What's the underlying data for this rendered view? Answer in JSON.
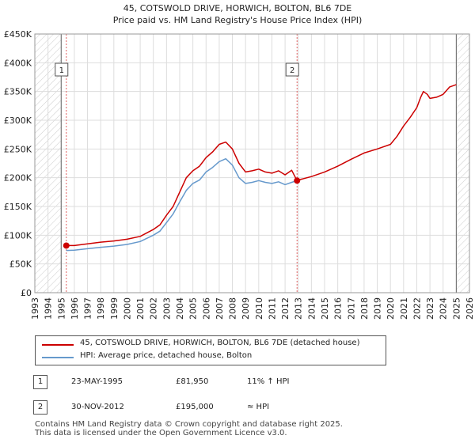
{
  "chart_data": {
    "type": "line",
    "title": "45, COTSWOLD DRIVE, HORWICH, BOLTON, BL6 7DE",
    "subtitle": "Price paid vs. HM Land Registry's House Price Index (HPI)",
    "xlabel": "",
    "ylabel": "",
    "xlim": [
      1993,
      2026
    ],
    "ylim": [
      0,
      450000
    ],
    "x_ticks": [
      1993,
      1994,
      1995,
      1996,
      1997,
      1998,
      1999,
      2000,
      2001,
      2002,
      2003,
      2004,
      2005,
      2006,
      2007,
      2008,
      2009,
      2010,
      2011,
      2012,
      2013,
      2014,
      2015,
      2016,
      2017,
      2018,
      2019,
      2020,
      2021,
      2022,
      2023,
      2024,
      2025,
      2026
    ],
    "y_ticks": [
      0,
      50000,
      100000,
      150000,
      200000,
      250000,
      300000,
      350000,
      400000,
      450000
    ],
    "y_tick_labels": [
      "£0",
      "£50K",
      "£100K",
      "£150K",
      "£200K",
      "£250K",
      "£300K",
      "£350K",
      "£400K",
      "£450K"
    ],
    "colors": {
      "property": "#cc0000",
      "hpi": "#6699cc",
      "vline": "#e06060",
      "hatch": "#cccccc",
      "grid": "#dddddd"
    },
    "hatched_regions": [
      [
        1993,
        1995.0
      ],
      [
        2025.0,
        2026
      ]
    ],
    "series": [
      {
        "name": "45, COTSWOLD DRIVE, HORWICH, BOLTON, BL6 7DE (detached house)",
        "color": "#cc0000",
        "x": [
          1995.39,
          1996,
          1997,
          1998,
          1999,
          2000,
          2001,
          2002,
          2002.5,
          2003,
          2003.5,
          2004,
          2004.5,
          2005,
          2005.5,
          2006,
          2006.5,
          2007,
          2007.5,
          2008,
          2008.5,
          2009,
          2009.5,
          2010,
          2010.5,
          2011,
          2011.5,
          2012,
          2012.5,
          2012.91,
          2013,
          2014,
          2015,
          2016,
          2017,
          2018,
          2019,
          2020,
          2020.5,
          2021,
          2021.5,
          2022,
          2022.3,
          2022.5,
          2022.8,
          2023,
          2023.5,
          2024,
          2024.5,
          2025
        ],
        "y": [
          81950,
          82000,
          85000,
          88000,
          90000,
          93000,
          98000,
          110000,
          118000,
          135000,
          150000,
          175000,
          200000,
          212000,
          220000,
          235000,
          245000,
          258000,
          262000,
          250000,
          225000,
          210000,
          212000,
          215000,
          210000,
          208000,
          212000,
          205000,
          213000,
          195000,
          196000,
          202000,
          210000,
          220000,
          232000,
          243000,
          250000,
          258000,
          272000,
          290000,
          305000,
          322000,
          340000,
          350000,
          345000,
          338000,
          340000,
          345000,
          358000,
          362000
        ]
      },
      {
        "name": "HPI: Average price, detached house, Bolton",
        "color": "#6699cc",
        "x": [
          1995.39,
          1996,
          1997,
          1998,
          1999,
          2000,
          2001,
          2002,
          2002.5,
          2003,
          2003.5,
          2004,
          2004.5,
          2005,
          2005.5,
          2006,
          2006.5,
          2007,
          2007.5,
          2008,
          2008.5,
          2009,
          2009.5,
          2010,
          2010.5,
          2011,
          2011.5,
          2012,
          2012.5,
          2012.91
        ],
        "y": [
          73500,
          74000,
          76500,
          79000,
          81000,
          84000,
          89000,
          100000,
          107000,
          122000,
          137000,
          158000,
          178000,
          190000,
          196000,
          210000,
          218000,
          228000,
          233000,
          222000,
          200000,
          190000,
          192000,
          195000,
          192000,
          190000,
          193000,
          188000,
          192000,
          195000
        ]
      }
    ],
    "sales": [
      {
        "marker": "1",
        "date": "23-MAY-1995",
        "x": 1995.39,
        "price": 81950,
        "price_label": "£81,950",
        "hpi_label": "11% ↑ HPI"
      },
      {
        "marker": "2",
        "date": "30-NOV-2012",
        "x": 2012.91,
        "price": 195000,
        "price_label": "£195,000",
        "hpi_label": "≈ HPI"
      }
    ],
    "legend": [
      {
        "label": "45, COTSWOLD DRIVE, HORWICH, BOLTON, BL6 7DE (detached house)",
        "color": "#cc0000"
      },
      {
        "label": "HPI: Average price, detached house, Bolton",
        "color": "#6699cc"
      }
    ],
    "footer": [
      "Contains HM Land Registry data © Crown copyright and database right 2025.",
      "This data is licensed under the Open Government Licence v3.0."
    ]
  }
}
